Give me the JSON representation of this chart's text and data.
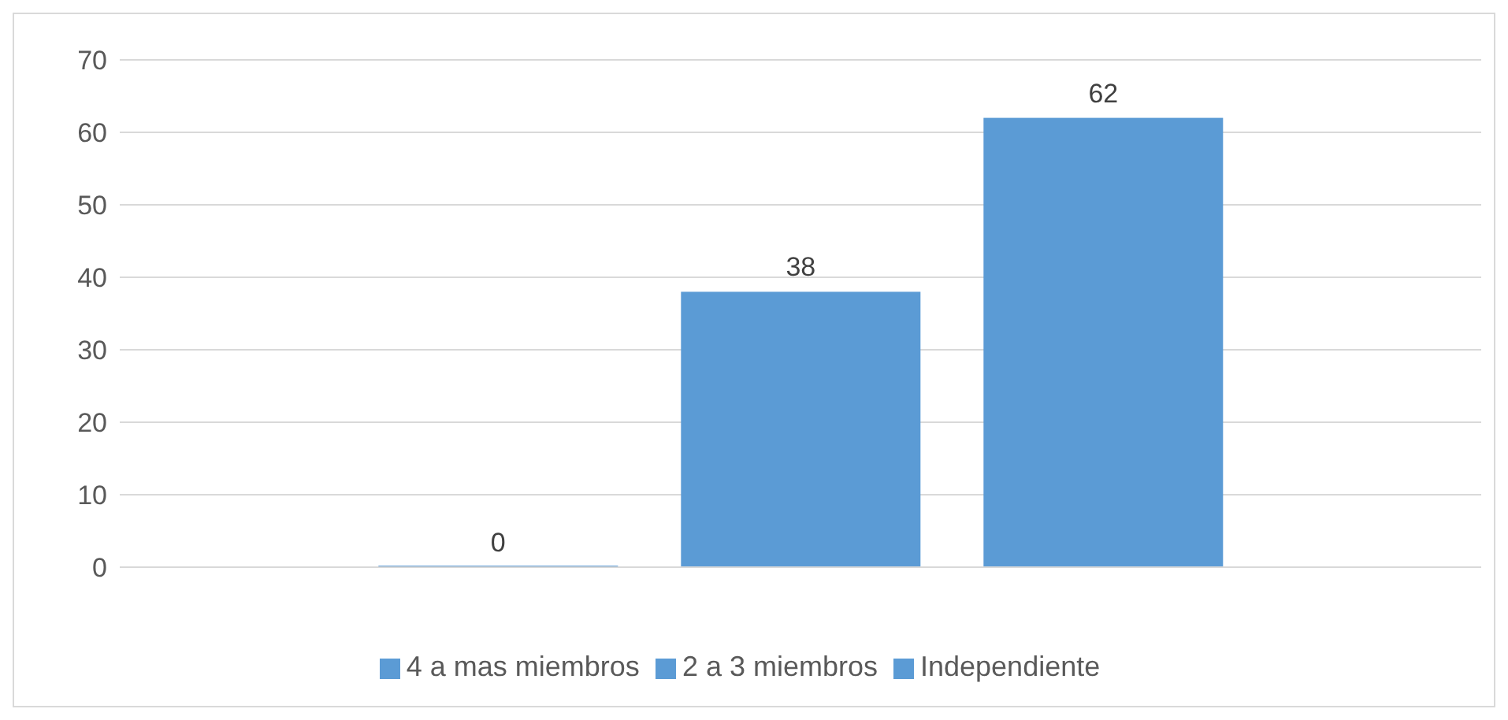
{
  "chart_data": {
    "type": "bar",
    "categories": [
      null
    ],
    "series": [
      {
        "name": "4 a mas miembros",
        "color": "#5b9bd5",
        "values": [
          0
        ]
      },
      {
        "name": "2 a 3 miembros",
        "color": "#5b9bd5",
        "values": [
          38
        ]
      },
      {
        "name": "Independiente",
        "color": "#5b9bd5",
        "values": [
          62
        ]
      }
    ],
    "ylim": [
      0,
      70
    ],
    "yticks": [
      0,
      10,
      20,
      30,
      40,
      50,
      60,
      70
    ],
    "grid": "y",
    "legend": "bottom",
    "data_labels": true
  }
}
